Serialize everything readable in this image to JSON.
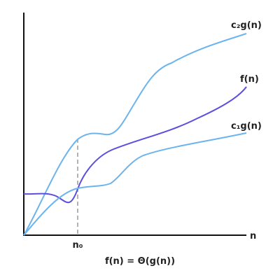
{
  "diagram": {
    "curve_labels": {
      "upper": "c₂g(n)",
      "middle": "f(n)",
      "lower": "c₁g(n)"
    },
    "axis_label_x": "n",
    "threshold_label": "n₀",
    "caption": "f(n) = Θ(g(n))",
    "colors": {
      "bound_curves": "#6cb4ee",
      "function_curve": "#5b4fe0",
      "axes": "#111111",
      "threshold_line": "#999999",
      "text": "#222222"
    }
  }
}
